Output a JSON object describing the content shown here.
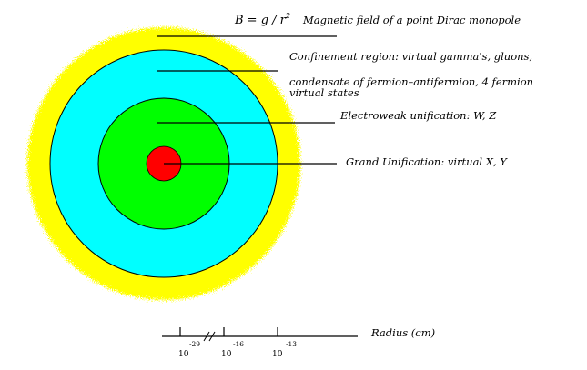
{
  "labels": {
    "dirac_formula_prefix": "B = g / r",
    "dirac_formula_exp": "2",
    "dirac_description": "Magnetic field of a point Dirac monopole",
    "confinement_line1": "Confinement region: virtual gamma's, gluons,",
    "confinement_line2": "condensate of fermion–antifermion, 4 fermion",
    "confinement_line3": "virtual states",
    "electroweak": "Electroweak unification: W, Z",
    "grand_unification": "Grand Unification: virtual X, Y"
  },
  "axis": {
    "label": "Radius (cm)",
    "ticks": [
      {
        "base": "10",
        "exponent": "-29"
      },
      {
        "base": "10",
        "exponent": "-16"
      },
      {
        "base": "10",
        "exponent": "-13"
      }
    ]
  },
  "colors": {
    "yellow_halo": "#ffff00",
    "cyan_region": "#00ffff",
    "green_region": "#00ff00",
    "red_core": "#ff0000",
    "ink": "#000000"
  }
}
